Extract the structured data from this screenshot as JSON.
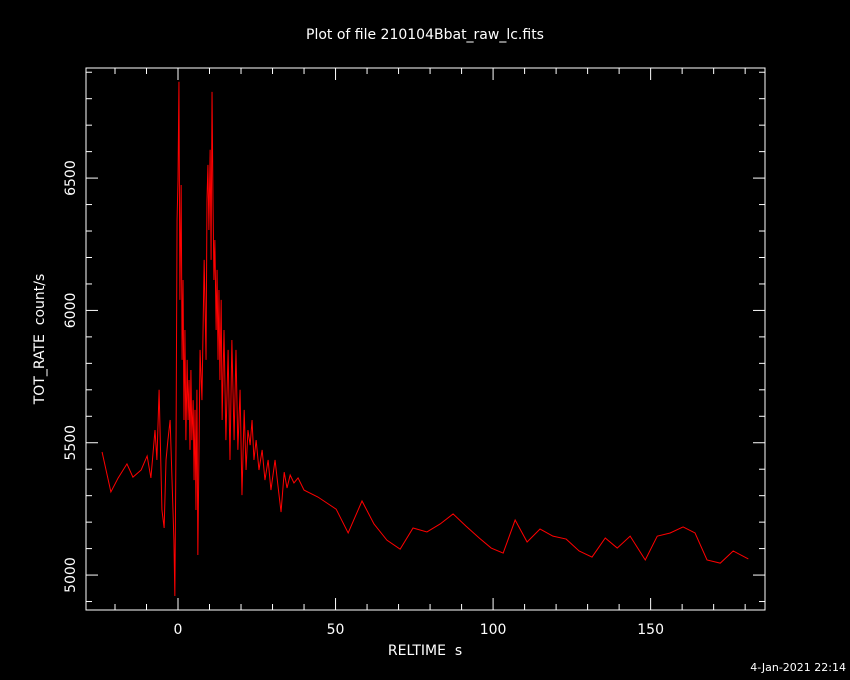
{
  "chart_data": {
    "type": "line",
    "title": "Plot of file 210104Bbat_raw_lc.fits",
    "x_label": "RELTIME  s",
    "y_label": "TOT_RATE  count/s",
    "footer": "4-Jan-2021 22:14",
    "xlim": [
      -29.2,
      186.3
    ],
    "ylim": [
      4868,
      6916
    ],
    "xticks": [
      0,
      50,
      100,
      150
    ],
    "yticks": [
      5000,
      5500,
      6000,
      6500
    ],
    "xminorticks": [
      -20,
      -10,
      10,
      20,
      30,
      40,
      60,
      70,
      80,
      90,
      110,
      120,
      130,
      140,
      160,
      170,
      180
    ],
    "yminorticks": [
      4900,
      5100,
      5200,
      5300,
      5400,
      5600,
      5700,
      5800,
      5900,
      6100,
      6200,
      6300,
      6400,
      6600,
      6700,
      6800,
      6900
    ],
    "series": [
      {
        "color": "#ff0000",
        "x": [
          -24.1,
          -21.3,
          -19,
          -16.2,
          -14.3,
          -11.7,
          -9.8,
          -8.6,
          -7.3,
          -6.7,
          -6,
          -5.1,
          -4.4,
          -3.8,
          -3.2,
          -2.5,
          -1.9,
          -1.3,
          -1,
          -0.6,
          -0.3,
          0,
          0.3,
          0.6,
          1,
          1.3,
          1.6,
          1.9,
          2.2,
          2.5,
          2.9,
          3.2,
          3.5,
          3.8,
          4.1,
          4.4,
          4.8,
          5.1,
          5.4,
          5.7,
          6,
          6.3,
          6.7,
          7,
          7.6,
          8.3,
          8.9,
          9.2,
          9.5,
          9.8,
          10.2,
          10.5,
          10.8,
          11.1,
          11.4,
          11.7,
          12.1,
          12.4,
          12.7,
          13,
          13.3,
          13.7,
          14,
          14.6,
          15.2,
          15.9,
          16.5,
          17.1,
          17.8,
          18.4,
          19,
          19.7,
          20.3,
          21,
          21.6,
          22.2,
          22.9,
          23.5,
          24.1,
          24.8,
          25.7,
          26.7,
          27.6,
          28.6,
          29.5,
          30.8,
          31.7,
          32.7,
          33.7,
          34.6,
          35.6,
          36.8,
          38.1,
          40,
          44.4,
          50.2,
          54,
          58.4,
          62.2,
          66.3,
          70.5,
          74.6,
          79,
          83.2,
          87.3,
          91.4,
          95.6,
          99.4,
          103.2,
          107,
          110.8,
          114.9,
          119,
          123.2,
          127.3,
          131.4,
          135.6,
          139.4,
          143.5,
          148.3,
          152.1,
          156.2,
          160.3,
          164.1,
          167.9,
          172.1,
          176.2,
          181
        ],
        "values": [
          5465,
          5314,
          5367,
          5420,
          5370,
          5397,
          5450,
          5367,
          5548,
          5435,
          5700,
          5246,
          5178,
          5435,
          5510,
          5586,
          5359,
          5132,
          4921,
          5548,
          6342,
          6493,
          6864,
          6040,
          6474,
          5813,
          6115,
          5586,
          5926,
          5510,
          5813,
          5586,
          5737,
          5473,
          5775,
          5510,
          5661,
          5359,
          5624,
          5246,
          5700,
          5076,
          5510,
          5851,
          5661,
          6191,
          5813,
          6418,
          6550,
          6304,
          6607,
          6191,
          6826,
          6418,
          6115,
          6266,
          5926,
          6153,
          5813,
          6077,
          5737,
          6040,
          5586,
          5926,
          5510,
          5851,
          5435,
          5888,
          5510,
          5851,
          5473,
          5700,
          5302,
          5624,
          5397,
          5548,
          5491,
          5586,
          5435,
          5510,
          5397,
          5473,
          5359,
          5435,
          5321,
          5435,
          5340,
          5238,
          5389,
          5329,
          5378,
          5348,
          5367,
          5321,
          5295,
          5249,
          5159,
          5280,
          5193,
          5132,
          5098,
          5178,
          5163,
          5193,
          5231,
          5185,
          5140,
          5102,
          5083,
          5208,
          5125,
          5174,
          5147,
          5136,
          5091,
          5068,
          5140,
          5102,
          5147,
          5057,
          5147,
          5159,
          5182,
          5159,
          5057,
          5045,
          5091,
          5061
        ]
      }
    ]
  }
}
